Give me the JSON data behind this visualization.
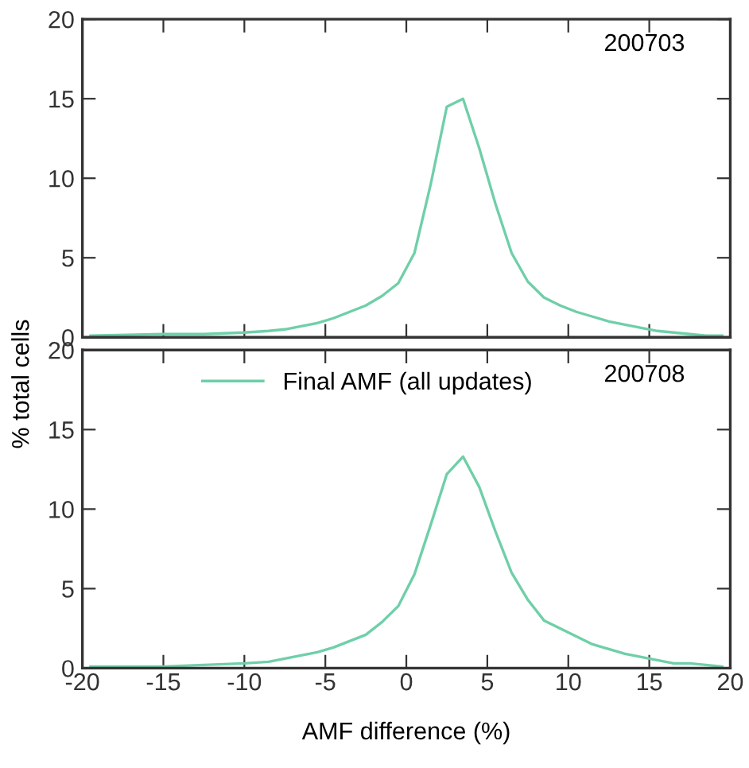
{
  "chart_data": [
    {
      "type": "line",
      "ylabel": "% total cells",
      "annotations": [
        "200703"
      ],
      "xlim": [
        -20,
        20
      ],
      "ylim": [
        0,
        20
      ],
      "xticks": [
        -20,
        -15,
        -10,
        -5,
        0,
        5,
        10,
        15,
        20
      ],
      "yticks": [
        0,
        5,
        10,
        15,
        20
      ],
      "tick_labels": "y",
      "grid": false,
      "legend": false,
      "series": [
        {
          "color": "#6fcfa8",
          "x": [
            -19.5,
            -15,
            -12.5,
            -10,
            -8.5,
            -7.5,
            -6.5,
            -5.5,
            -4.5,
            -3.5,
            -2.5,
            -1.5,
            -0.5,
            0.5,
            1.5,
            2.5,
            3.5,
            4.5,
            5.5,
            6.5,
            7.5,
            8.5,
            9.5,
            10.5,
            11.5,
            12.5,
            13.5,
            14.5,
            15.5,
            16.5,
            17.5,
            18.5,
            19.5
          ],
          "values": [
            0.1,
            0.2,
            0.2,
            0.3,
            0.4,
            0.5,
            0.7,
            0.9,
            1.2,
            1.6,
            2.0,
            2.6,
            3.4,
            5.3,
            9.6,
            14.5,
            15.0,
            11.9,
            8.4,
            5.3,
            3.5,
            2.5,
            2.0,
            1.6,
            1.3,
            1.0,
            0.8,
            0.6,
            0.4,
            0.3,
            0.2,
            0.1,
            0.1
          ]
        }
      ]
    },
    {
      "type": "line",
      "xlabel": "AMF difference (%)",
      "annotations": [
        "200708"
      ],
      "xlim": [
        -20,
        20
      ],
      "ylim": [
        0,
        20
      ],
      "xticks": [
        -20,
        -15,
        -10,
        -5,
        0,
        5,
        10,
        15,
        20
      ],
      "yticks": [
        0,
        5,
        10,
        15,
        20
      ],
      "grid": false,
      "legend": "top",
      "series": [
        {
          "name": "Final AMF (all updates)",
          "color": "#6fcfa8",
          "x": [
            -19.5,
            -15,
            -12.5,
            -10,
            -8.5,
            -7.5,
            -6.5,
            -5.5,
            -4.5,
            -3.5,
            -2.5,
            -1.5,
            -0.5,
            0.5,
            1.5,
            2.5,
            3.5,
            4.5,
            5.5,
            6.5,
            7.5,
            8.5,
            9.5,
            10.5,
            11.5,
            12.5,
            13.5,
            14.5,
            15.5,
            16.5,
            17.5,
            18.5,
            19.5
          ],
          "values": [
            0.1,
            0.1,
            0.2,
            0.3,
            0.4,
            0.6,
            0.8,
            1.0,
            1.3,
            1.7,
            2.1,
            2.9,
            3.9,
            5.9,
            9.0,
            12.2,
            13.3,
            11.4,
            8.6,
            6.0,
            4.3,
            3.0,
            2.5,
            2.0,
            1.5,
            1.2,
            0.9,
            0.7,
            0.5,
            0.3,
            0.3,
            0.2,
            0.1
          ]
        }
      ]
    }
  ]
}
